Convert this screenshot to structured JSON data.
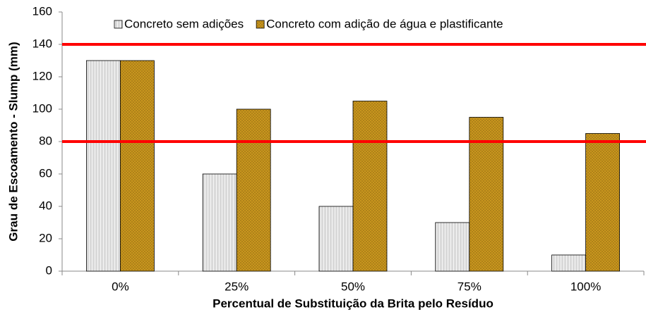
{
  "chart_data": {
    "type": "bar",
    "y_label": "Grau de Escoamento - Slump (mm)",
    "x_label": "Percentual de Substituição da Brita pelo Resíduo",
    "categories": [
      "0%",
      "25%",
      "50%",
      "75%",
      "100%"
    ],
    "series": [
      {
        "name": "Concreto sem adições",
        "color": "#d9d9d9",
        "values": [
          130,
          60,
          40,
          30,
          10
        ]
      },
      {
        "name": "Concreto com adição de água e plastificante",
        "color": "#c8961e",
        "values": [
          130,
          100,
          105,
          95,
          85
        ]
      }
    ],
    "reference_lines": {
      "color": "#ff0000",
      "values": [
        140,
        80
      ]
    },
    "ylim": [
      0,
      160
    ],
    "yticks": [
      0,
      20,
      40,
      60,
      80,
      100,
      120,
      140,
      160
    ],
    "grid": false,
    "legend": "top"
  }
}
